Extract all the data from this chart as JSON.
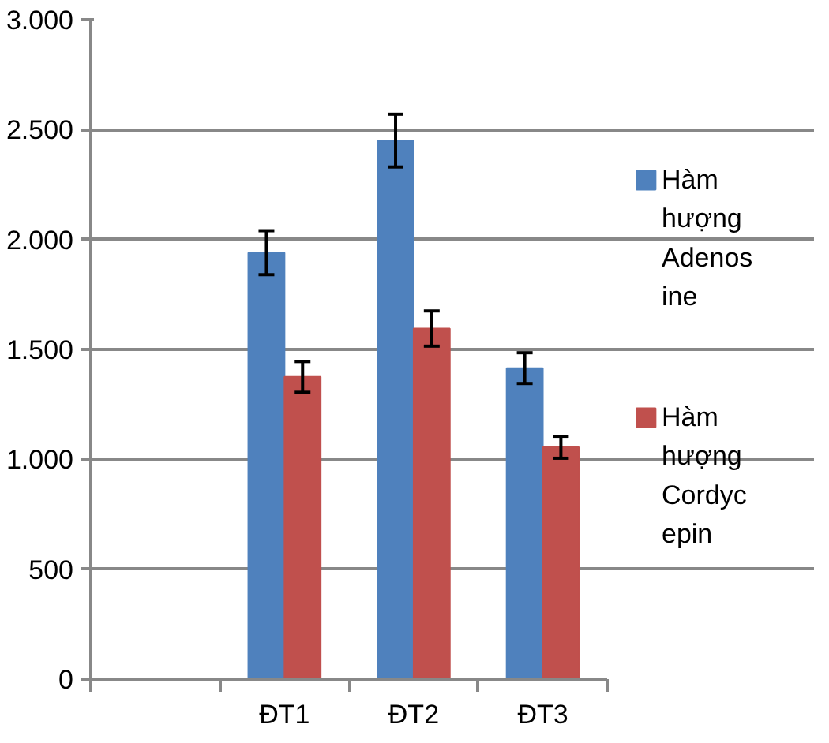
{
  "chart_data": {
    "type": "bar",
    "categories": [
      null,
      "ĐT1",
      "ĐT2",
      "ĐT3"
    ],
    "series": [
      {
        "name": "Hàm hượng Adenosine",
        "color": "#4f81bd",
        "values": [
          null,
          1940,
          2450,
          1415
        ],
        "errors": [
          null,
          100,
          120,
          70
        ]
      },
      {
        "name": "Hàm hượng Cordycepin",
        "color": "#c0504d",
        "values": [
          null,
          1375,
          1595,
          1055
        ],
        "errors": [
          null,
          70,
          80,
          50
        ]
      }
    ],
    "ylim": [
      0,
      3000
    ],
    "yticks": [
      {
        "value": 0,
        "label": "0"
      },
      {
        "value": 500,
        "label": "500"
      },
      {
        "value": 1000,
        "label": "1.000"
      },
      {
        "value": 1500,
        "label": "1.500"
      },
      {
        "value": 2000,
        "label": "2.000"
      },
      {
        "value": 2500,
        "label": "2.500"
      },
      {
        "value": 3000,
        "label": "3.000"
      }
    ],
    "grid": "y",
    "legend": "right"
  }
}
